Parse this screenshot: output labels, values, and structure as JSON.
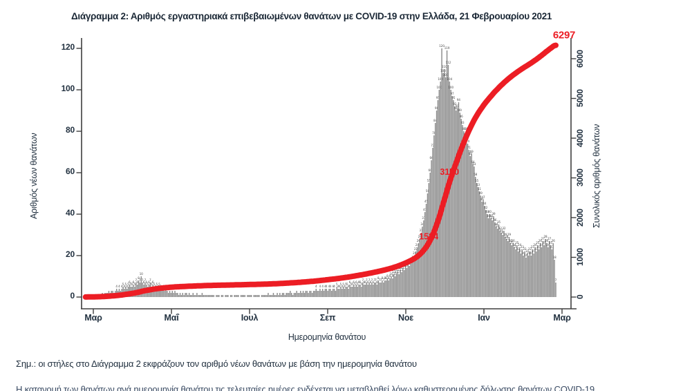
{
  "page": {
    "title": "Διάγραμμα 2: Αριθμός εργαστηριακά επιβεβαιωμένων θανάτων με COVID-19 στην Ελλάδα, 21 Φεβρουαρίου 2021",
    "note": "Σημ.: οι στήλες στο Διάγραμμα 2 εκφράζουν τον αριθμό νέων θανάτων με βάση την ημερομηνία θανάτου",
    "partial_note": "Η κατανομή των θανάτων ανά ημερομηνία θανάτου τις τελευταίες ημέρες ενδέχεται να μεταβληθεί λόγω καθυστερημένης δήλωσης θανάτων COVID-19"
  },
  "chart_data": {
    "type": "bar",
    "overlay": "line",
    "title": "Διάγραμμα 2: Αριθμός εργαστηριακά επιβεβαιωμένων θανάτων με COVID-19 στην Ελλάδα, 21 Φεβρουαρίου 2021",
    "xlabel": "Ημερομηνία θανάτου",
    "ylabel_left": "Αριθμός νέων θανάτων",
    "ylabel_right": "Συνολικός αριθμός θανάτων",
    "x_tick_labels": [
      "Μαρ",
      "Μαΐ",
      "Ιουλ",
      "Σεπ",
      "Νοε",
      "Ιαν",
      "Μαρ"
    ],
    "y_left": {
      "ticks": [
        0,
        20,
        40,
        60,
        80,
        100,
        120
      ],
      "lim": [
        0,
        120
      ]
    },
    "y_right": {
      "ticks": [
        0,
        1000,
        2000,
        3000,
        4000,
        5000,
        6000
      ],
      "lim": [
        0,
        6300
      ]
    },
    "bar_color": "#8b8b8b",
    "line_color": "#ec1d24",
    "bar_label_color": "#3f3f3f",
    "axis_color": "#3e3e3e",
    "bars_are": "daily new deaths by date of death (Feb 2020 - Feb 2021)",
    "line_is": "cumulative total deaths",
    "daily_deaths": [
      1,
      1,
      1,
      1,
      1,
      1,
      0,
      0,
      1,
      0,
      1,
      1,
      1,
      2,
      1,
      2,
      2,
      2,
      3,
      2,
      3,
      3,
      2,
      3,
      4,
      3,
      4,
      3,
      4,
      5,
      4,
      5,
      4,
      5,
      6,
      5,
      5,
      6,
      5,
      7,
      6,
      8,
      7,
      10,
      7,
      6,
      7,
      6,
      5,
      6,
      7,
      5,
      6,
      5,
      4,
      5,
      4,
      5,
      4,
      3,
      4,
      3,
      4,
      3,
      2,
      3,
      2,
      3,
      2,
      3,
      2,
      2,
      1,
      2,
      1,
      2,
      1,
      2,
      2,
      1,
      2,
      1,
      1,
      2,
      1,
      1,
      2,
      1,
      1,
      1,
      2,
      1,
      1,
      1,
      1,
      1,
      1,
      1,
      1,
      1,
      0,
      1,
      1,
      1,
      0,
      1,
      1,
      0,
      1,
      1,
      1,
      0,
      1,
      1,
      0,
      1,
      1,
      1,
      1,
      0,
      1,
      1,
      1,
      1,
      0,
      1,
      1,
      1,
      1,
      0,
      1,
      1,
      1,
      1,
      1,
      0,
      1,
      1,
      1,
      1,
      1,
      2,
      1,
      1,
      1,
      2,
      1,
      1,
      2,
      1,
      2,
      1,
      2,
      2,
      1,
      2,
      2,
      2,
      3,
      2,
      1,
      2,
      2,
      3,
      2,
      2,
      3,
      2,
      3,
      2,
      3,
      3,
      2,
      3,
      3,
      2,
      3,
      3,
      4,
      3,
      3,
      4,
      3,
      4,
      3,
      4,
      4,
      3,
      4,
      4,
      3,
      4,
      4,
      3,
      5,
      4,
      4,
      5,
      4,
      5,
      4,
      5,
      5,
      4,
      6,
      5,
      5,
      6,
      5,
      6,
      5,
      6,
      6,
      5,
      7,
      6,
      6,
      7,
      6,
      7,
      6,
      7,
      6,
      7,
      7,
      6,
      8,
      7,
      7,
      8,
      7,
      8,
      8,
      9,
      8,
      9,
      10,
      9,
      11,
      10,
      11,
      12,
      11,
      13,
      12,
      14,
      13,
      15,
      14,
      16,
      15,
      16,
      17,
      18,
      20,
      22,
      24,
      26,
      28,
      31,
      34,
      37,
      41,
      45,
      50,
      55,
      60,
      66,
      72,
      78,
      84,
      90,
      95,
      100,
      104,
      120,
      108,
      110,
      106,
      119,
      112,
      104,
      100,
      97,
      95,
      92,
      90,
      91,
      94,
      89,
      86,
      83,
      80,
      77,
      80,
      74,
      71,
      68,
      69,
      64,
      63,
      58,
      55,
      53,
      51,
      49,
      46,
      47,
      44,
      42,
      40,
      38,
      40,
      38,
      37,
      39,
      36,
      34,
      33,
      35,
      32,
      31,
      30,
      32,
      29,
      28,
      27,
      29,
      26,
      25,
      26,
      24,
      23,
      25,
      22,
      24,
      21,
      23,
      20,
      22,
      19,
      21,
      20,
      22,
      20,
      23,
      21,
      24,
      22,
      25,
      23,
      26,
      24,
      27,
      25,
      28,
      26,
      24,
      27,
      25,
      23,
      26,
      18,
      7
    ],
    "annotations": [
      {
        "text": "1524",
        "value": 1524,
        "layer": "below"
      },
      {
        "text": "3150",
        "value": 3150,
        "layer": "below"
      },
      {
        "text": "6297",
        "value": 6297,
        "layer": "above"
      }
    ],
    "legend": "none",
    "grid": false
  }
}
